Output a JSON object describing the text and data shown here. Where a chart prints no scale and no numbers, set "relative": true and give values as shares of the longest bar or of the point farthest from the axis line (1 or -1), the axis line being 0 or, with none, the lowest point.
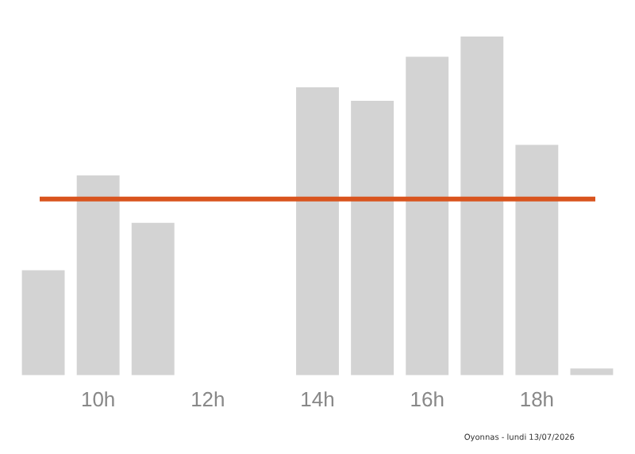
{
  "chart_data": {
    "type": "bar",
    "relative": true,
    "categories": [
      null,
      "10h",
      null,
      "12h",
      null,
      "14h",
      null,
      "16h",
      null,
      "18h",
      null
    ],
    "values": [
      0.31,
      0.59,
      0.45,
      0,
      0,
      0.85,
      0.81,
      0.94,
      1,
      0.68,
      0.02
    ],
    "color": "#d3d3d3",
    "ref_lines": [
      {
        "axis": "y",
        "value": 0.52,
        "color": "#d9541e"
      }
    ],
    "annotations": [
      "Oyonnas - lundi 13/07/2026"
    ],
    "grid": false,
    "legend": false
  }
}
